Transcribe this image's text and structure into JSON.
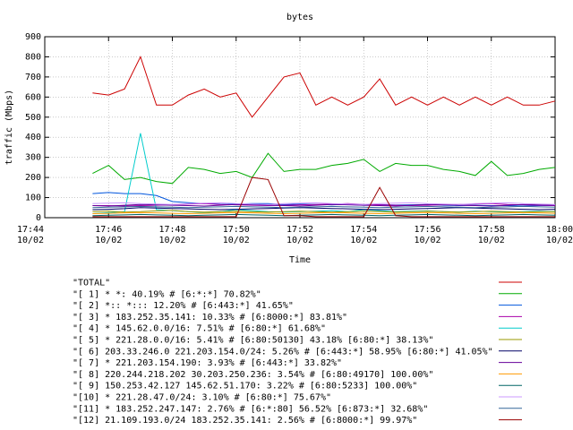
{
  "chart_data": {
    "type": "line",
    "title": "bytes",
    "xlabel": "Time",
    "ylabel": "traffic (Mbps)",
    "ylim": [
      0,
      900
    ],
    "yticks": [
      0,
      100,
      200,
      300,
      400,
      500,
      600,
      700,
      800,
      900
    ],
    "xlim": [
      "17:44",
      "18:00"
    ],
    "xticks": [
      {
        "time": "17:44",
        "date": "10/02"
      },
      {
        "time": "17:46",
        "date": "10/02"
      },
      {
        "time": "17:48",
        "date": "10/02"
      },
      {
        "time": "17:50",
        "date": "10/02"
      },
      {
        "time": "17:52",
        "date": "10/02"
      },
      {
        "time": "17:54",
        "date": "10/02"
      },
      {
        "time": "17:56",
        "date": "10/02"
      },
      {
        "time": "17:58",
        "date": "10/02"
      },
      {
        "time": "18:00",
        "date": "10/02"
      }
    ],
    "grid": true,
    "legend_position": "bottom",
    "x": [
      "17:45:30",
      "17:46:00",
      "17:46:30",
      "17:47:00",
      "17:47:30",
      "17:48:00",
      "17:48:30",
      "17:49:00",
      "17:49:30",
      "17:50:00",
      "17:50:30",
      "17:51:00",
      "17:51:30",
      "17:52:00",
      "17:52:30",
      "17:53:00",
      "17:53:30",
      "17:54:00",
      "17:54:30",
      "17:55:00",
      "17:55:30",
      "17:56:00",
      "17:56:30",
      "17:57:00",
      "17:57:30",
      "17:58:00",
      "17:58:30",
      "17:59:00",
      "17:59:30",
      "18:00:00"
    ],
    "series": [
      {
        "name": "\"TOTAL\"",
        "color": "#cc0000",
        "values": [
          620,
          610,
          640,
          800,
          560,
          560,
          610,
          640,
          600,
          620,
          500,
          600,
          700,
          720,
          560,
          600,
          560,
          600,
          690,
          560,
          600,
          560,
          600,
          560,
          600,
          560,
          600,
          560,
          560,
          580
        ]
      },
      {
        "name": "\"[ 1] * *: 40.19% # [6:*:*] 70.82%\"",
        "color": "#00aa00",
        "values": [
          220,
          260,
          190,
          200,
          180,
          170,
          250,
          240,
          220,
          230,
          200,
          320,
          230,
          240,
          240,
          260,
          270,
          290,
          230,
          270,
          260,
          260,
          240,
          230,
          210,
          280,
          210,
          220,
          240,
          250
        ]
      },
      {
        "name": "\"[ 2] *:: *::: 12.20% # [6:443:*] 41.65%\"",
        "color": "#0055dd",
        "values": [
          120,
          125,
          120,
          120,
          110,
          80,
          75,
          70,
          72,
          68,
          70,
          70,
          65,
          68,
          66,
          64,
          66,
          62,
          65,
          63,
          64,
          65,
          62,
          60,
          62,
          60,
          60,
          58,
          60,
          60
        ]
      },
      {
        "name": "\"[ 3] * 183.252.35.141: 10.33% # [6:8000:*] 83.81%\"",
        "color": "#aa00aa",
        "values": [
          60,
          60,
          58,
          60,
          62,
          65,
          68,
          70,
          66,
          64,
          62,
          60,
          62,
          64,
          66,
          68,
          70,
          66,
          64,
          62,
          60,
          62,
          64,
          66,
          68,
          70,
          66,
          64,
          62,
          60
        ]
      },
      {
        "name": "\"[ 4] * 145.62.0.0/16: 7.51% # [6:80:*] 61.68%\"",
        "color": "#00cccc",
        "values": [
          20,
          25,
          30,
          420,
          40,
          35,
          30,
          25,
          30,
          40,
          35,
          30,
          28,
          30,
          32,
          35,
          30,
          40,
          35,
          30,
          32,
          34,
          30,
          28,
          32,
          30,
          28,
          30,
          32,
          30
        ]
      },
      {
        "name": "\"[ 5] * 221.28.0.0/16: 5.41% # [6:80:50130] 43.18% [6:80:*] 38.13%\"",
        "color": "#999900",
        "values": [
          30,
          32,
          28,
          30,
          34,
          36,
          30,
          28,
          30,
          32,
          30,
          28,
          30,
          32,
          30,
          28,
          30,
          32,
          30,
          28,
          30,
          32,
          30,
          28,
          30,
          32,
          30,
          28,
          30,
          30
        ]
      },
      {
        "name": "\"[ 6] 203.33.246.0 221.203.154.0/24: 5.26% # [6:443:*] 58.95% [6:80:*] 41.05%\"",
        "color": "#000066",
        "values": [
          40,
          42,
          45,
          50,
          48,
          46,
          44,
          42,
          40,
          42,
          44,
          46,
          48,
          50,
          48,
          46,
          44,
          42,
          40,
          42,
          44,
          46,
          48,
          50,
          48,
          46,
          44,
          42,
          40,
          42
        ]
      },
      {
        "name": "\"[ 7] * 221.203.154.190: 3.93% # [6:443:*] 33.82%\"",
        "color": "#660099",
        "values": [
          60,
          58,
          62,
          66,
          64,
          62,
          60,
          58,
          62,
          66,
          64,
          62,
          60,
          58,
          62,
          66,
          64,
          62,
          60,
          58,
          62,
          66,
          64,
          62,
          60,
          58,
          62,
          66,
          64,
          62
        ]
      },
      {
        "name": "\"[ 8] 220.244.218.202 30.203.250.236: 3.54% # [6:80:49170] 100.00%\"",
        "color": "#ff9900",
        "values": [
          20,
          22,
          24,
          26,
          24,
          22,
          20,
          22,
          24,
          26,
          24,
          22,
          20,
          22,
          24,
          26,
          24,
          22,
          20,
          22,
          24,
          26,
          24,
          22,
          20,
          22,
          24,
          26,
          24,
          22
        ]
      },
      {
        "name": "\"[ 9] 150.253.42.127 145.62.51.170: 3.22% # [6:80:5233] 100.00%\"",
        "color": "#006666",
        "values": [
          10,
          12,
          14,
          16,
          14,
          12,
          10,
          12,
          14,
          16,
          14,
          12,
          10,
          12,
          14,
          16,
          14,
          12,
          10,
          12,
          14,
          16,
          14,
          12,
          10,
          12,
          14,
          16,
          14,
          12
        ]
      },
      {
        "name": "\"[10] * 221.28.47.0/24: 3.10% # [6:80:*] 75.67%\"",
        "color": "#cc99ff",
        "values": [
          70,
          72,
          74,
          70,
          68,
          66,
          70,
          72,
          74,
          70,
          68,
          66,
          70,
          72,
          74,
          70,
          68,
          66,
          70,
          72,
          74,
          70,
          68,
          66,
          70,
          72,
          74,
          70,
          68,
          66
        ]
      },
      {
        "name": "\"[11] * 183.252.247.147: 2.76% # [6:*:80] 56.52% [6:873:*] 32.68%\"",
        "color": "#336699",
        "values": [
          50,
          52,
          54,
          56,
          54,
          52,
          50,
          52,
          54,
          56,
          54,
          52,
          50,
          52,
          54,
          56,
          54,
          52,
          50,
          52,
          54,
          56,
          54,
          52,
          50,
          52,
          54,
          56,
          54,
          52
        ]
      },
      {
        "name": "\"[12] 21.109.193.0/24 183.252.35.141: 2.56% # [6:8000:*] 99.97%\"",
        "color": "#990000",
        "values": [
          5,
          5,
          5,
          5,
          5,
          5,
          5,
          5,
          5,
          5,
          200,
          190,
          10,
          10,
          5,
          5,
          5,
          5,
          150,
          10,
          5,
          5,
          5,
          5,
          5,
          5,
          5,
          5,
          5,
          5
        ]
      }
    ]
  }
}
